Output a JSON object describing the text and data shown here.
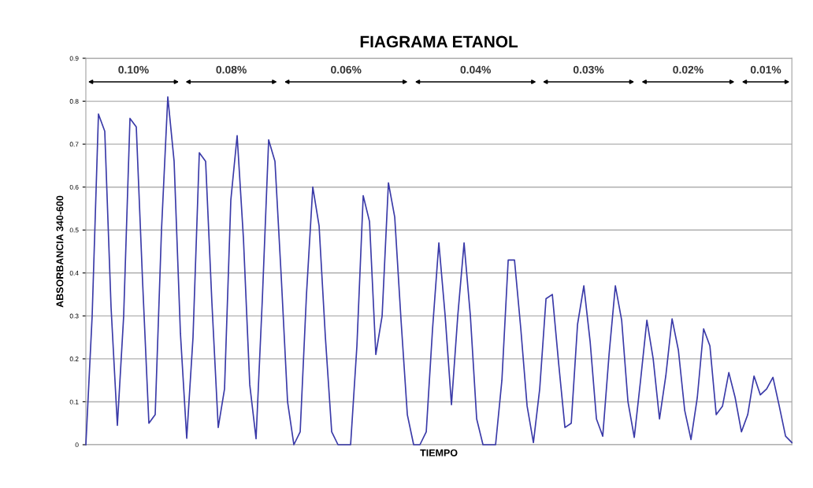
{
  "chart_data": {
    "type": "line",
    "title": "FIAGRAMA ETANOL",
    "xlabel": "TIEMPO",
    "ylabel": "ABSORBANCIA 340-600",
    "categories": [
      null,
      null,
      null,
      null,
      null,
      null,
      null,
      null,
      null,
      null,
      null,
      null,
      null,
      null,
      null,
      null,
      null,
      null,
      null,
      null,
      null,
      null,
      null,
      null,
      null,
      null,
      null,
      null,
      null,
      null,
      null,
      null,
      null,
      null,
      null,
      null,
      null,
      null,
      null,
      null,
      null,
      null,
      null,
      null,
      null,
      null,
      null,
      null,
      null,
      null,
      null,
      null,
      null,
      null,
      null,
      null,
      null,
      null,
      null,
      null,
      null,
      null,
      null,
      null,
      null,
      null,
      null,
      null,
      null,
      null,
      null,
      null,
      null,
      null,
      null,
      null,
      null,
      null,
      null,
      null,
      null,
      null,
      null,
      null,
      null,
      null,
      null,
      null,
      null,
      null,
      null,
      null,
      null,
      null,
      null,
      null,
      null,
      null,
      null,
      null,
      null,
      null,
      null,
      null,
      null,
      null,
      null,
      null,
      null,
      null,
      null,
      null,
      null
    ],
    "series": [
      {
        "color": "#3a3aa8",
        "values": [
          0,
          0.3,
          0.77,
          0.73,
          0.32,
          0.045,
          0.3,
          0.76,
          0.74,
          0.38,
          0.05,
          0.07,
          0.5,
          0.81,
          0.66,
          0.26,
          0.015,
          0.25,
          0.68,
          0.66,
          0.33,
          0.04,
          0.13,
          0.57,
          0.72,
          0.48,
          0.14,
          0.014,
          0.34,
          0.71,
          0.66,
          0.39,
          0.1,
          0,
          0.03,
          0.35,
          0.6,
          0.51,
          0.25,
          0.03,
          0,
          0,
          0,
          0.23,
          0.58,
          0.52,
          0.21,
          0.3,
          0.61,
          0.53,
          0.29,
          0.07,
          0,
          0,
          0.03,
          0.27,
          0.47,
          0.3,
          0.093,
          0.3,
          0.47,
          0.3,
          0.06,
          0,
          0,
          0,
          0.15,
          0.43,
          0.43,
          0.27,
          0.09,
          0.005,
          0.13,
          0.34,
          0.35,
          0.19,
          0.04,
          0.05,
          0.28,
          0.37,
          0.24,
          0.06,
          0.02,
          0.21,
          0.37,
          0.29,
          0.1,
          0.017,
          0.15,
          0.29,
          0.2,
          0.06,
          0.16,
          0.293,
          0.22,
          0.08,
          0.012,
          0.11,
          0.27,
          0.23,
          0.07,
          0.09,
          0.168,
          0.11,
          0.03,
          0.07,
          0.16,
          0.116,
          0.13,
          0.157,
          0.09,
          0.02,
          0.005
        ]
      }
    ],
    "ylim": [
      0,
      0.9
    ],
    "yticks": [
      0,
      0.1,
      0.2,
      0.3,
      0.4,
      0.5,
      0.6,
      0.7,
      0.8,
      0.9
    ],
    "grid": "y",
    "tick_labels": "y",
    "legend": false,
    "annotations": [
      "0.10%",
      "0.08%",
      "0.06%",
      "0.04%",
      "0.03%",
      "0.02%",
      "0.01%"
    ]
  }
}
